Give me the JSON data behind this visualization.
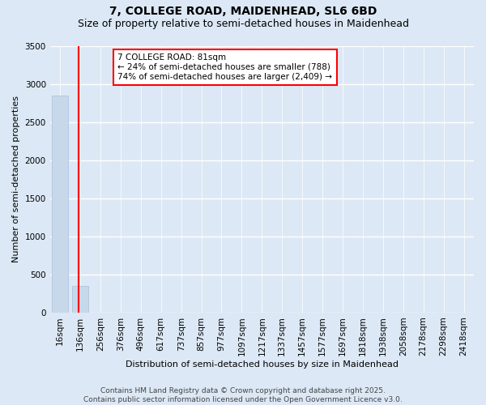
{
  "title_line1": "7, COLLEGE ROAD, MAIDENHEAD, SL6 6BD",
  "title_line2": "Size of property relative to semi-detached houses in Maidenhead",
  "xlabel": "Distribution of semi-detached houses by size in Maidenhead",
  "ylabel": "Number of semi-detached properties",
  "categories": [
    "16sqm",
    "136sqm",
    "256sqm",
    "376sqm",
    "496sqm",
    "617sqm",
    "737sqm",
    "857sqm",
    "977sqm",
    "1097sqm",
    "1217sqm",
    "1337sqm",
    "1457sqm",
    "1577sqm",
    "1697sqm",
    "1818sqm",
    "1938sqm",
    "2058sqm",
    "2178sqm",
    "2298sqm",
    "2418sqm"
  ],
  "values": [
    2850,
    350,
    0,
    0,
    0,
    0,
    0,
    0,
    0,
    0,
    0,
    0,
    0,
    0,
    0,
    0,
    0,
    0,
    0,
    0,
    0
  ],
  "bar_color": "#c8d8eb",
  "bar_edgecolor": "#a8c0d8",
  "background_color": "#dce8f5",
  "grid_color": "#ffffff",
  "annotation_text": "7 COLLEGE ROAD: 81sqm\n← 24% of semi-detached houses are smaller (788)\n74% of semi-detached houses are larger (2,409) →",
  "annotation_box_facecolor": "white",
  "annotation_box_edgecolor": "red",
  "vline_x": 0.92,
  "vline_color": "red",
  "ylim": [
    0,
    3500
  ],
  "yticks": [
    0,
    500,
    1000,
    1500,
    2000,
    2500,
    3000,
    3500
  ],
  "footnote": "Contains HM Land Registry data © Crown copyright and database right 2025.\nContains public sector information licensed under the Open Government Licence v3.0.",
  "title_fontsize": 10,
  "subtitle_fontsize": 9,
  "axis_label_fontsize": 8,
  "tick_fontsize": 7.5,
  "annotation_fontsize": 7.5,
  "footnote_fontsize": 6.5
}
